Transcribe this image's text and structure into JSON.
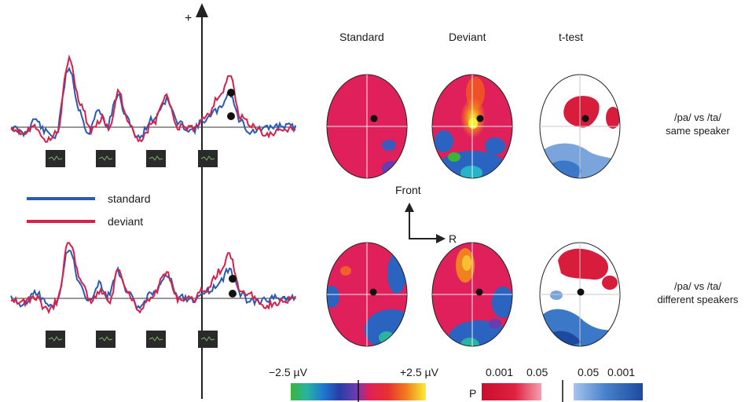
{
  "axis": {
    "plus_label": "+"
  },
  "legend": {
    "items": [
      {
        "label": "standard",
        "color": "#2a5bb3"
      },
      {
        "label": "deviant",
        "color": "#d8204a"
      }
    ]
  },
  "columns": [
    "Standard",
    "Deviant",
    "t-test"
  ],
  "conditions": [
    {
      "line1": "/pa/ vs /ta/",
      "line2": "same speaker"
    },
    {
      "line1": "/pa/ vs /ta/",
      "line2": "different speakers"
    }
  ],
  "orientation": {
    "front_label": "Front",
    "right_label": "R"
  },
  "voltage_scale": {
    "min_label": "−2.5 µV",
    "max_label": "+2.5 µV"
  },
  "p_scale": {
    "p_label": "P",
    "left_ticks": [
      "0.001",
      "0.05"
    ],
    "right_ticks": [
      "0.05",
      "0.001"
    ]
  },
  "colors": {
    "standard": "#2a5bb3",
    "deviant": "#d8204a",
    "map_positive": "#e0205a",
    "map_negative": "#2a64c0",
    "ttest_pos": "#d81c3c",
    "ttest_neg": "#3c78c8"
  }
}
